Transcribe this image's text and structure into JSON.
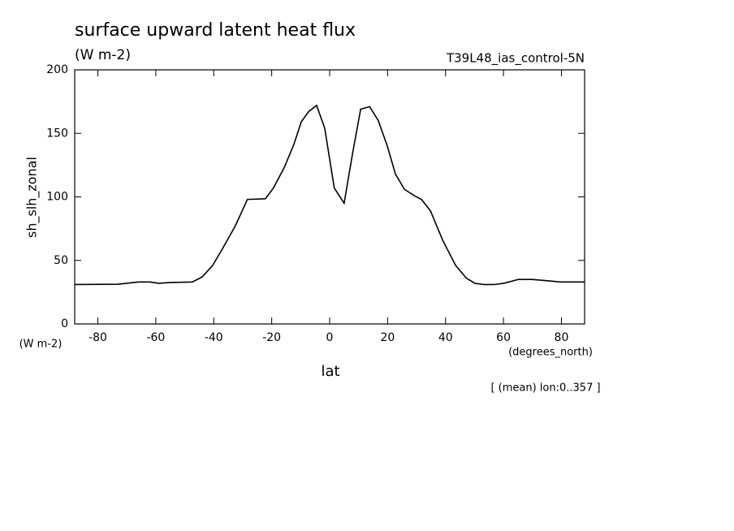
{
  "chart_data": {
    "type": "line",
    "title": "surface upward latent heat flux",
    "subtitle": "(W m-2)",
    "run_label": "T39L48_ias_control-5N",
    "y_label": "sh_slh_zonal",
    "y_units": "(W m-2)",
    "x_units": "(degrees_north)",
    "x_label": "lat",
    "annotation": "[ (mean) lon:0..357 ]",
    "xlim": [
      -88,
      88
    ],
    "ylim": [
      0,
      200
    ],
    "xticks": [
      -80,
      -60,
      -40,
      -20,
      0,
      20,
      40,
      60,
      80
    ],
    "yticks": [
      0,
      50,
      100,
      150,
      200
    ],
    "series": [
      {
        "color": "#000000",
        "x": [
          -88,
          -73,
          -66,
          -62,
          -59,
          -55,
          -47.4,
          -44,
          -40.4,
          -36.8,
          -32.6,
          -28.4,
          -22.2,
          -19.4,
          -15.7,
          -12.4,
          -9.8,
          -7.3,
          -4.5,
          -1.7,
          1.6,
          5.0,
          7.9,
          10.7,
          13.8,
          16.8,
          19.9,
          22.7,
          25.8,
          29.2,
          31.7,
          34.8,
          39.0,
          43.5,
          47.2,
          50.2,
          53.3,
          56.7,
          60.1,
          65.1,
          69.9,
          75.2,
          79.7,
          88
        ],
        "values": [
          31,
          31.3,
          33,
          33,
          32,
          32.6,
          33,
          37,
          46,
          60,
          77,
          98,
          98.5,
          107,
          123,
          141,
          159,
          167,
          172,
          154,
          107,
          95,
          134,
          169,
          171,
          160,
          140,
          118,
          106,
          101,
          98,
          89,
          66,
          46,
          36,
          32,
          31,
          31,
          32,
          35,
          35,
          34,
          33,
          33
        ]
      }
    ]
  }
}
